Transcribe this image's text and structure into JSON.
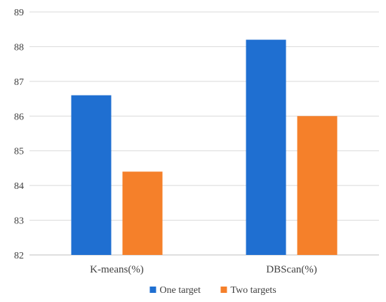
{
  "chart_data": {
    "type": "bar",
    "title": "",
    "xlabel": "",
    "ylabel": "",
    "categories": [
      "K-means(%)",
      "DBScan(%)"
    ],
    "series": [
      {
        "name": "One target",
        "color": "#1f6fd1",
        "values": [
          86.6,
          88.2
        ]
      },
      {
        "name": "Two targets",
        "color": "#f5802a",
        "values": [
          84.4,
          86.0
        ]
      }
    ],
    "ylim": [
      82,
      89
    ],
    "yticks": [
      82,
      83,
      84,
      85,
      86,
      87,
      88,
      89
    ],
    "grid": true,
    "legend": "bottom-center"
  }
}
